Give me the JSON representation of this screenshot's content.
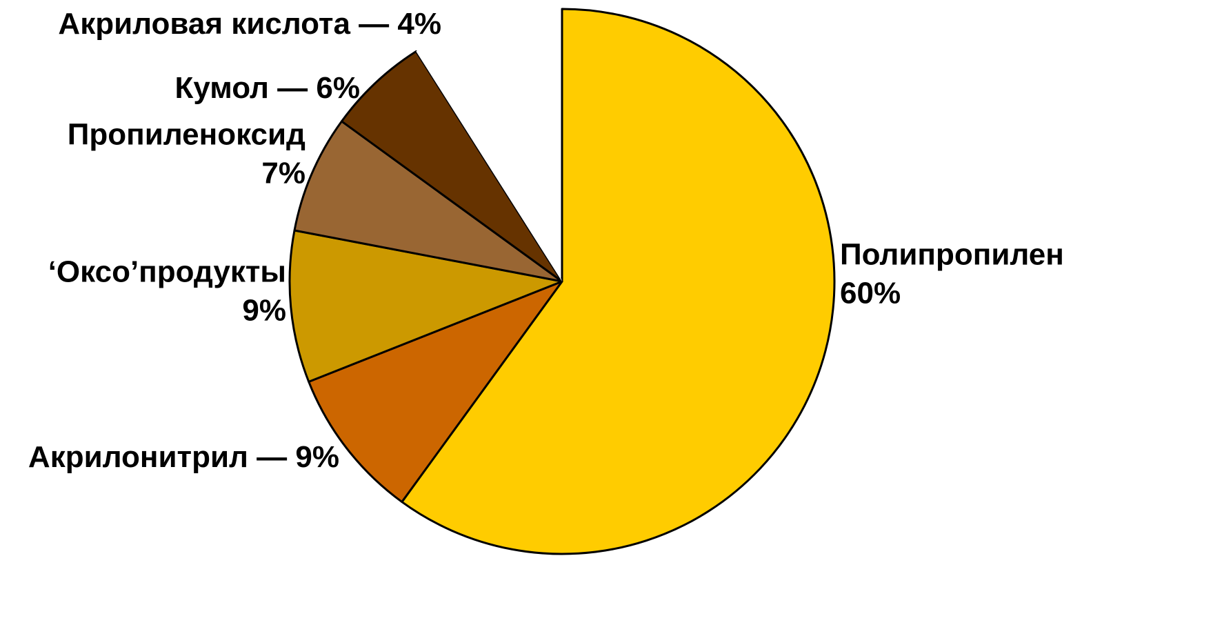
{
  "chart_data": {
    "type": "pie",
    "categories": [
      "Полипропилен",
      "Акрилонитрил",
      "‘Оксо’продукты",
      "Пропиленоксид",
      "Кумол",
      "Акриловая кислота"
    ],
    "values": [
      60,
      9,
      9,
      7,
      6,
      4
    ],
    "value_labels": [
      "60%",
      "9%",
      "9%",
      "7%",
      "6%",
      "4%"
    ],
    "separator": " — ",
    "colors": [
      "#FFCC00",
      "#CC6600",
      "#CC9900",
      "#996633",
      "#663300",
      "#FFFFFF"
    ]
  }
}
